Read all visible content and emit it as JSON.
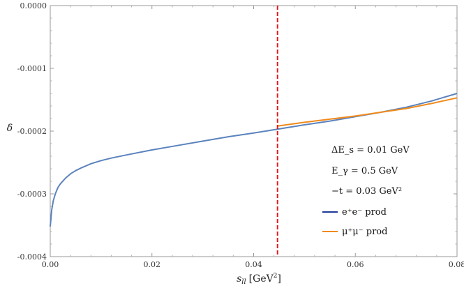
{
  "chart_data": {
    "type": "line",
    "title": "",
    "xlabel": "s_ll [GeV²]",
    "xlabel_main": "s",
    "xlabel_sub": "ll",
    "xlabel_unit": "[GeV",
    "xlabel_unit_sup": "2",
    "xlabel_unit_end": "]",
    "ylabel": "δ",
    "xlim": [
      0.0,
      0.08
    ],
    "ylim": [
      -0.0004,
      0.0
    ],
    "x_ticks": [
      "0.00",
      "0.02",
      "0.04",
      "0.06",
      "0.08"
    ],
    "x_tick_values": [
      0.0,
      0.02,
      0.04,
      0.06,
      0.08
    ],
    "y_ticks": [
      "0.0000",
      "-0.0001",
      "-0.0002",
      "-0.0003",
      "-0.0004"
    ],
    "y_tick_values": [
      0.0,
      -0.0001,
      -0.0002,
      -0.0003,
      -0.0004
    ],
    "grid": false,
    "legend_position": "right",
    "annotations": [
      "ΔE_s = 0.01 GeV",
      "E_γ = 0.5 GeV",
      "−t = 0.03 GeV²"
    ],
    "vline": {
      "x": 0.0447,
      "color": "#e8161c",
      "style": "dashed"
    },
    "series": [
      {
        "name": "e⁺e⁻ prod",
        "color": "#5b83bd",
        "legend_color": "#1f3a9a",
        "x": [
          0.0,
          0.0003,
          0.0006,
          0.001,
          0.0015,
          0.002,
          0.003,
          0.004,
          0.005,
          0.006,
          0.008,
          0.01,
          0.012,
          0.015,
          0.02,
          0.025,
          0.03,
          0.035,
          0.04,
          0.0447,
          0.05,
          0.055,
          0.06,
          0.065,
          0.07,
          0.075,
          0.08
        ],
        "y": [
          -0.000352,
          -0.000325,
          -0.000311,
          -0.0003,
          -0.00029,
          -0.000284,
          -0.000275,
          -0.000268,
          -0.000263,
          -0.000259,
          -0.000252,
          -0.000247,
          -0.000243,
          -0.000238,
          -0.00023,
          -0.000223,
          -0.000216,
          -0.000209,
          -0.000203,
          -0.000197,
          -0.00019,
          -0.000184,
          -0.000177,
          -0.00017,
          -0.000162,
          -0.000152,
          -0.00014
        ]
      },
      {
        "name": "μ⁺μ⁻ prod",
        "color": "#f08a1c",
        "legend_color": "#f08a1c",
        "x": [
          0.0447,
          0.05,
          0.055,
          0.06,
          0.065,
          0.07,
          0.075,
          0.08
        ],
        "y": [
          -0.000192,
          -0.000186,
          -0.000181,
          -0.000176,
          -0.00017,
          -0.000164,
          -0.000156,
          -0.000147
        ]
      }
    ]
  }
}
